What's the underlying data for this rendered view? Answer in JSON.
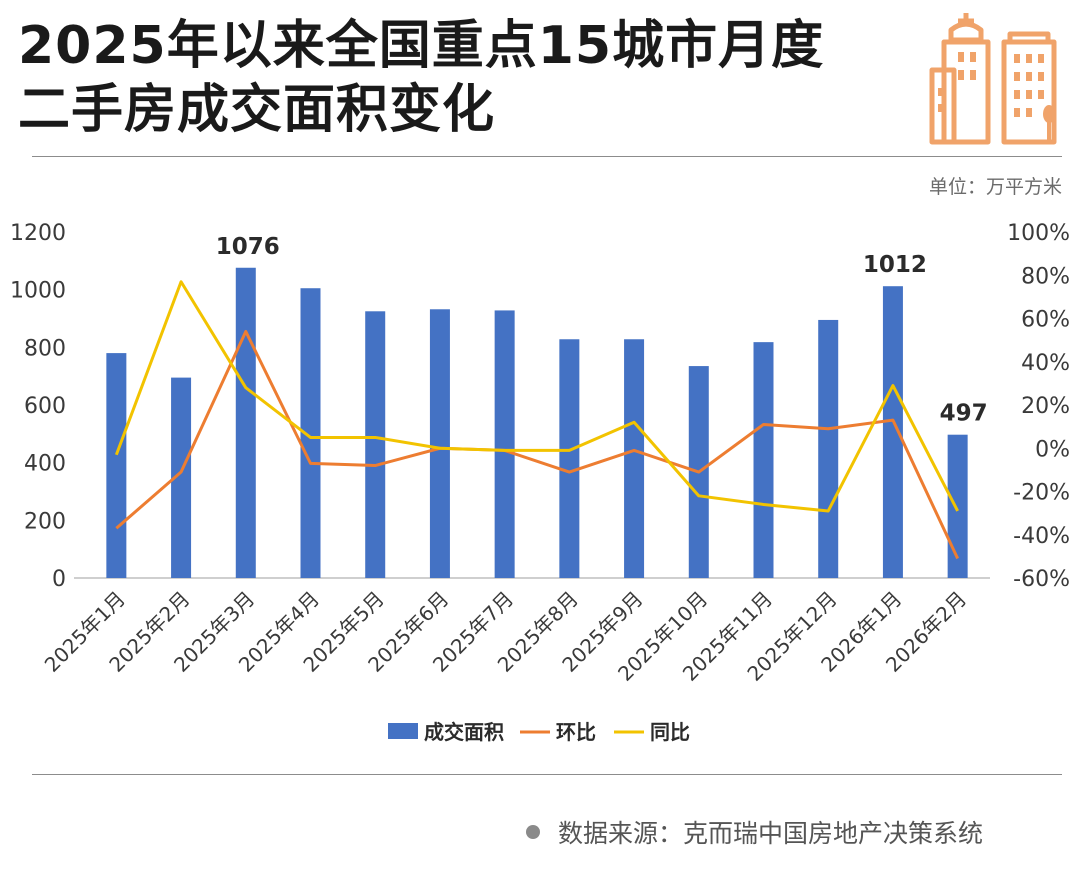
{
  "header": {
    "title_line1": "2025年以来全国重点15城市月度",
    "title_line2": "二手房成交面积变化",
    "unit": "单位：万平方米"
  },
  "footer": {
    "source": "数据来源：克而瑞中国房地产决策系统"
  },
  "colors": {
    "bar": "#4472c4",
    "mom_line": "#ed7d31",
    "yoy_line": "#f2c300",
    "logo": "#f0a36a"
  },
  "chart_data": {
    "type": "bar",
    "categories": [
      "2025年1月",
      "2025年2月",
      "2025年3月",
      "2025年4月",
      "2025年5月",
      "2025年6月",
      "2025年7月",
      "2025年8月",
      "2025年9月",
      "2025年10月",
      "2025年11月",
      "2025年12月",
      "2026年1月",
      "2026年2月"
    ],
    "series": [
      {
        "name": "成交面积",
        "type": "bar",
        "axis": "left",
        "values": [
          780,
          695,
          1076,
          1005,
          925,
          932,
          928,
          828,
          828,
          735,
          818,
          895,
          1012,
          497
        ]
      },
      {
        "name": "环比",
        "type": "line",
        "axis": "right",
        "values": [
          -37,
          -11,
          54,
          -7,
          -8,
          0,
          -1,
          -11,
          -1,
          -11,
          11,
          9,
          13,
          -51
        ]
      },
      {
        "name": "同比",
        "type": "line",
        "axis": "right",
        "values": [
          -3,
          77,
          28,
          5,
          5,
          0,
          -1,
          -1,
          12,
          -22,
          -26,
          -29,
          29,
          -29
        ]
      }
    ],
    "data_labels": [
      {
        "category": "2025年3月",
        "text": "1076"
      },
      {
        "category": "2026年1月",
        "text": "1012"
      },
      {
        "category": "2026年2月",
        "text": "497"
      }
    ],
    "y_left": {
      "ylim": [
        0,
        1200
      ],
      "ticks": [
        0,
        200,
        400,
        600,
        800,
        1000,
        1200
      ]
    },
    "y_right": {
      "ylim": [
        -60,
        100
      ],
      "ticks": [
        "-60%",
        "-40%",
        "-20%",
        "0%",
        "20%",
        "40%",
        "60%",
        "80%",
        "100%"
      ]
    },
    "legend": {
      "position": "bottom",
      "items": [
        "成交面积",
        "环比",
        "同比"
      ]
    },
    "grid": false
  }
}
